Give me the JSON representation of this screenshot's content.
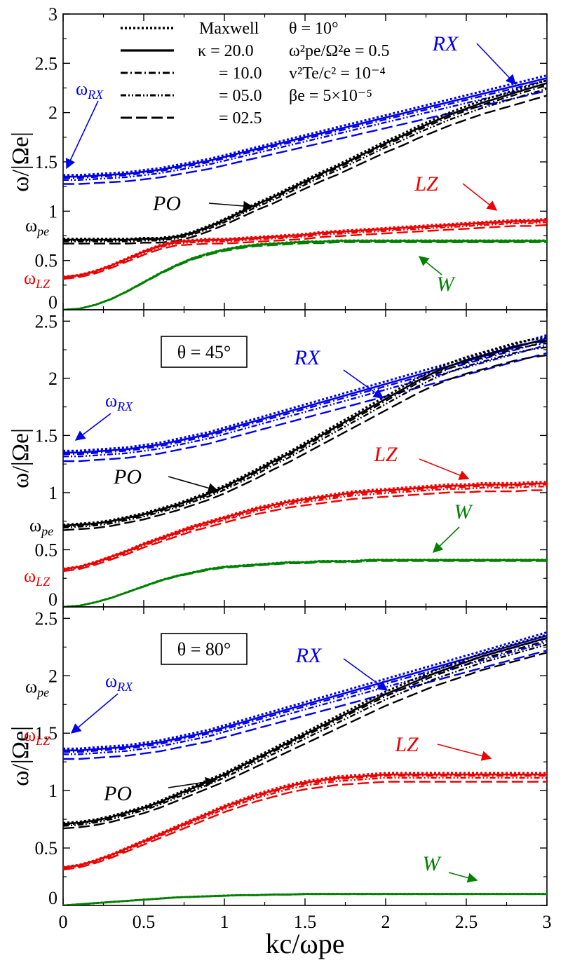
{
  "chart_data": {
    "type": "line",
    "xlabel": "kc/ωpe",
    "ylabel": "ω/|Ωe|",
    "xlim": [
      0,
      3
    ],
    "x_ticks": [
      "0",
      "0.5",
      "1",
      "1.5",
      "2",
      "2.5",
      "3"
    ],
    "legend": {
      "placement": "top",
      "series_labels": [
        "Maxwell",
        "κ = 20.0",
        "= 10.0",
        "= 05.0",
        "= 02.5"
      ],
      "params": [
        "θ = 10°",
        "ω²pe/Ω²e = 0.5",
        "v²Te/c² = 10⁻⁴",
        "βe = 5×10⁻⁵"
      ]
    },
    "colors": {
      "RX": "#0000ee",
      "PO": "#000000",
      "LZ": "#ee0000",
      "W": "#008000"
    },
    "x": [
      0,
      0.1,
      0.2,
      0.3,
      0.4,
      0.5,
      0.6,
      0.7,
      0.8,
      0.9,
      1.0,
      1.1,
      1.2,
      1.3,
      1.4,
      1.5,
      1.6,
      1.7,
      1.8,
      1.9,
      2.0,
      2.1,
      2.2,
      2.3,
      2.4,
      2.5,
      2.6,
      2.7,
      2.8,
      2.9,
      3.0
    ],
    "panels": [
      {
        "angle_label": "",
        "ylim": [
          0,
          3
        ],
        "y_ticks": [
          "0",
          "0.5",
          "1",
          "1.5",
          "2",
          "2.5",
          "3"
        ],
        "freq_labels": {
          "rx": "ω",
          "rx_sub": "RX",
          "pe": "ω",
          "pe_sub": "pe",
          "lz": "ω",
          "lz_sub": "LZ"
        },
        "annotations": [
          "RX",
          "PO",
          "LZ",
          "W"
        ],
        "series": [
          {
            "mode": "RX",
            "values": [
              1.35,
              1.35,
              1.36,
              1.37,
              1.38,
              1.4,
              1.42,
              1.45,
              1.48,
              1.51,
              1.55,
              1.59,
              1.63,
              1.67,
              1.71,
              1.75,
              1.79,
              1.83,
              1.87,
              1.91,
              1.95,
              1.99,
              2.03,
              2.07,
              2.11,
              2.15,
              2.19,
              2.23,
              2.27,
              2.31,
              2.35
            ]
          },
          {
            "mode": "PO",
            "values": [
              0.71,
              0.71,
              0.71,
              0.71,
              0.71,
              0.72,
              0.72,
              0.74,
              0.78,
              0.84,
              0.91,
              0.99,
              1.07,
              1.14,
              1.22,
              1.3,
              1.38,
              1.45,
              1.53,
              1.61,
              1.69,
              1.76,
              1.84,
              1.91,
              1.98,
              2.04,
              2.1,
              2.15,
              2.2,
              2.25,
              2.3
            ]
          },
          {
            "mode": "LZ",
            "values": [
              0.33,
              0.35,
              0.39,
              0.45,
              0.52,
              0.59,
              0.65,
              0.69,
              0.7,
              0.71,
              0.71,
              0.72,
              0.73,
              0.74,
              0.75,
              0.76,
              0.78,
              0.79,
              0.8,
              0.81,
              0.82,
              0.83,
              0.84,
              0.85,
              0.86,
              0.87,
              0.88,
              0.89,
              0.9,
              0.9,
              0.91
            ]
          },
          {
            "mode": "W",
            "values": [
              0.0,
              0.01,
              0.05,
              0.11,
              0.19,
              0.28,
              0.37,
              0.45,
              0.52,
              0.57,
              0.61,
              0.64,
              0.66,
              0.67,
              0.68,
              0.69,
              0.69,
              0.7,
              0.7,
              0.7,
              0.7,
              0.7,
              0.7,
              0.7,
              0.7,
              0.7,
              0.7,
              0.7,
              0.7,
              0.7,
              0.7
            ]
          }
        ]
      },
      {
        "angle_label": "θ = 45°",
        "ylim": [
          0,
          2.6
        ],
        "y_ticks": [
          "0",
          "0.5",
          "1",
          "1.5",
          "2",
          "2.5"
        ],
        "freq_labels": {
          "rx": "ω",
          "rx_sub": "RX",
          "pe": "ω",
          "pe_sub": "pe",
          "lz": "ω",
          "lz_sub": "LZ"
        },
        "annotations": [
          "RX",
          "PO",
          "LZ",
          "W"
        ],
        "series": [
          {
            "mode": "RX",
            "values": [
              1.35,
              1.35,
              1.36,
              1.37,
              1.38,
              1.4,
              1.42,
              1.45,
              1.48,
              1.51,
              1.55,
              1.59,
              1.63,
              1.67,
              1.71,
              1.75,
              1.79,
              1.83,
              1.87,
              1.91,
              1.95,
              1.99,
              2.03,
              2.07,
              2.11,
              2.15,
              2.19,
              2.23,
              2.27,
              2.31,
              2.35
            ]
          },
          {
            "mode": "PO",
            "values": [
              0.71,
              0.72,
              0.73,
              0.75,
              0.78,
              0.81,
              0.85,
              0.89,
              0.94,
              0.99,
              1.05,
              1.12,
              1.19,
              1.27,
              1.34,
              1.42,
              1.5,
              1.58,
              1.66,
              1.74,
              1.82,
              1.9,
              1.98,
              2.05,
              2.11,
              2.16,
              2.2,
              2.24,
              2.28,
              2.31,
              2.33
            ]
          },
          {
            "mode": "LZ",
            "values": [
              0.33,
              0.35,
              0.39,
              0.44,
              0.49,
              0.55,
              0.6,
              0.65,
              0.7,
              0.74,
              0.78,
              0.82,
              0.86,
              0.89,
              0.92,
              0.94,
              0.96,
              0.98,
              1.0,
              1.01,
              1.02,
              1.03,
              1.04,
              1.05,
              1.06,
              1.06,
              1.07,
              1.07,
              1.07,
              1.08,
              1.08
            ]
          },
          {
            "mode": "W",
            "values": [
              0.0,
              0.01,
              0.04,
              0.08,
              0.13,
              0.18,
              0.23,
              0.27,
              0.3,
              0.33,
              0.35,
              0.36,
              0.37,
              0.38,
              0.39,
              0.39,
              0.4,
              0.4,
              0.4,
              0.41,
              0.41,
              0.41,
              0.41,
              0.41,
              0.41,
              0.41,
              0.41,
              0.41,
              0.41,
              0.41,
              0.41
            ]
          }
        ]
      },
      {
        "angle_label": "θ = 80°",
        "ylim": [
          0,
          2.6
        ],
        "y_ticks": [
          "0",
          "0.5",
          "1",
          "1.5",
          "2",
          "2.5"
        ],
        "freq_labels": {
          "rx": "ω",
          "rx_sub": "RX",
          "pe": "ω",
          "pe_sub": "pe",
          "lz": "ω",
          "lz_sub": "LZ"
        },
        "annotations": [
          "RX",
          "PO",
          "LZ",
          "W"
        ],
        "series": [
          {
            "mode": "RX",
            "values": [
              1.35,
              1.35,
              1.36,
              1.37,
              1.38,
              1.4,
              1.42,
              1.45,
              1.48,
              1.51,
              1.55,
              1.59,
              1.63,
              1.67,
              1.71,
              1.75,
              1.79,
              1.83,
              1.87,
              1.91,
              1.95,
              1.99,
              2.03,
              2.07,
              2.11,
              2.15,
              2.19,
              2.23,
              2.27,
              2.31,
              2.35
            ]
          },
          {
            "mode": "PO",
            "values": [
              0.71,
              0.72,
              0.74,
              0.77,
              0.81,
              0.85,
              0.9,
              0.96,
              1.02,
              1.08,
              1.14,
              1.21,
              1.28,
              1.35,
              1.42,
              1.49,
              1.56,
              1.63,
              1.7,
              1.77,
              1.84,
              1.9,
              1.96,
              2.02,
              2.07,
              2.12,
              2.17,
              2.21,
              2.25,
              2.29,
              2.33
            ]
          },
          {
            "mode": "LZ",
            "values": [
              0.33,
              0.35,
              0.39,
              0.44,
              0.5,
              0.56,
              0.62,
              0.68,
              0.74,
              0.8,
              0.86,
              0.91,
              0.96,
              1.0,
              1.04,
              1.07,
              1.09,
              1.11,
              1.12,
              1.13,
              1.14,
              1.14,
              1.14,
              1.14,
              1.14,
              1.14,
              1.14,
              1.14,
              1.14,
              1.14,
              1.14
            ]
          },
          {
            "mode": "W",
            "values": [
              0.0,
              0.01,
              0.02,
              0.03,
              0.04,
              0.05,
              0.06,
              0.07,
              0.075,
              0.08,
              0.085,
              0.09,
              0.09,
              0.095,
              0.095,
              0.1,
              0.1,
              0.1,
              0.1,
              0.1,
              0.1,
              0.1,
              0.1,
              0.1,
              0.1,
              0.1,
              0.1,
              0.1,
              0.1,
              0.1,
              0.1
            ]
          }
        ]
      }
    ]
  }
}
